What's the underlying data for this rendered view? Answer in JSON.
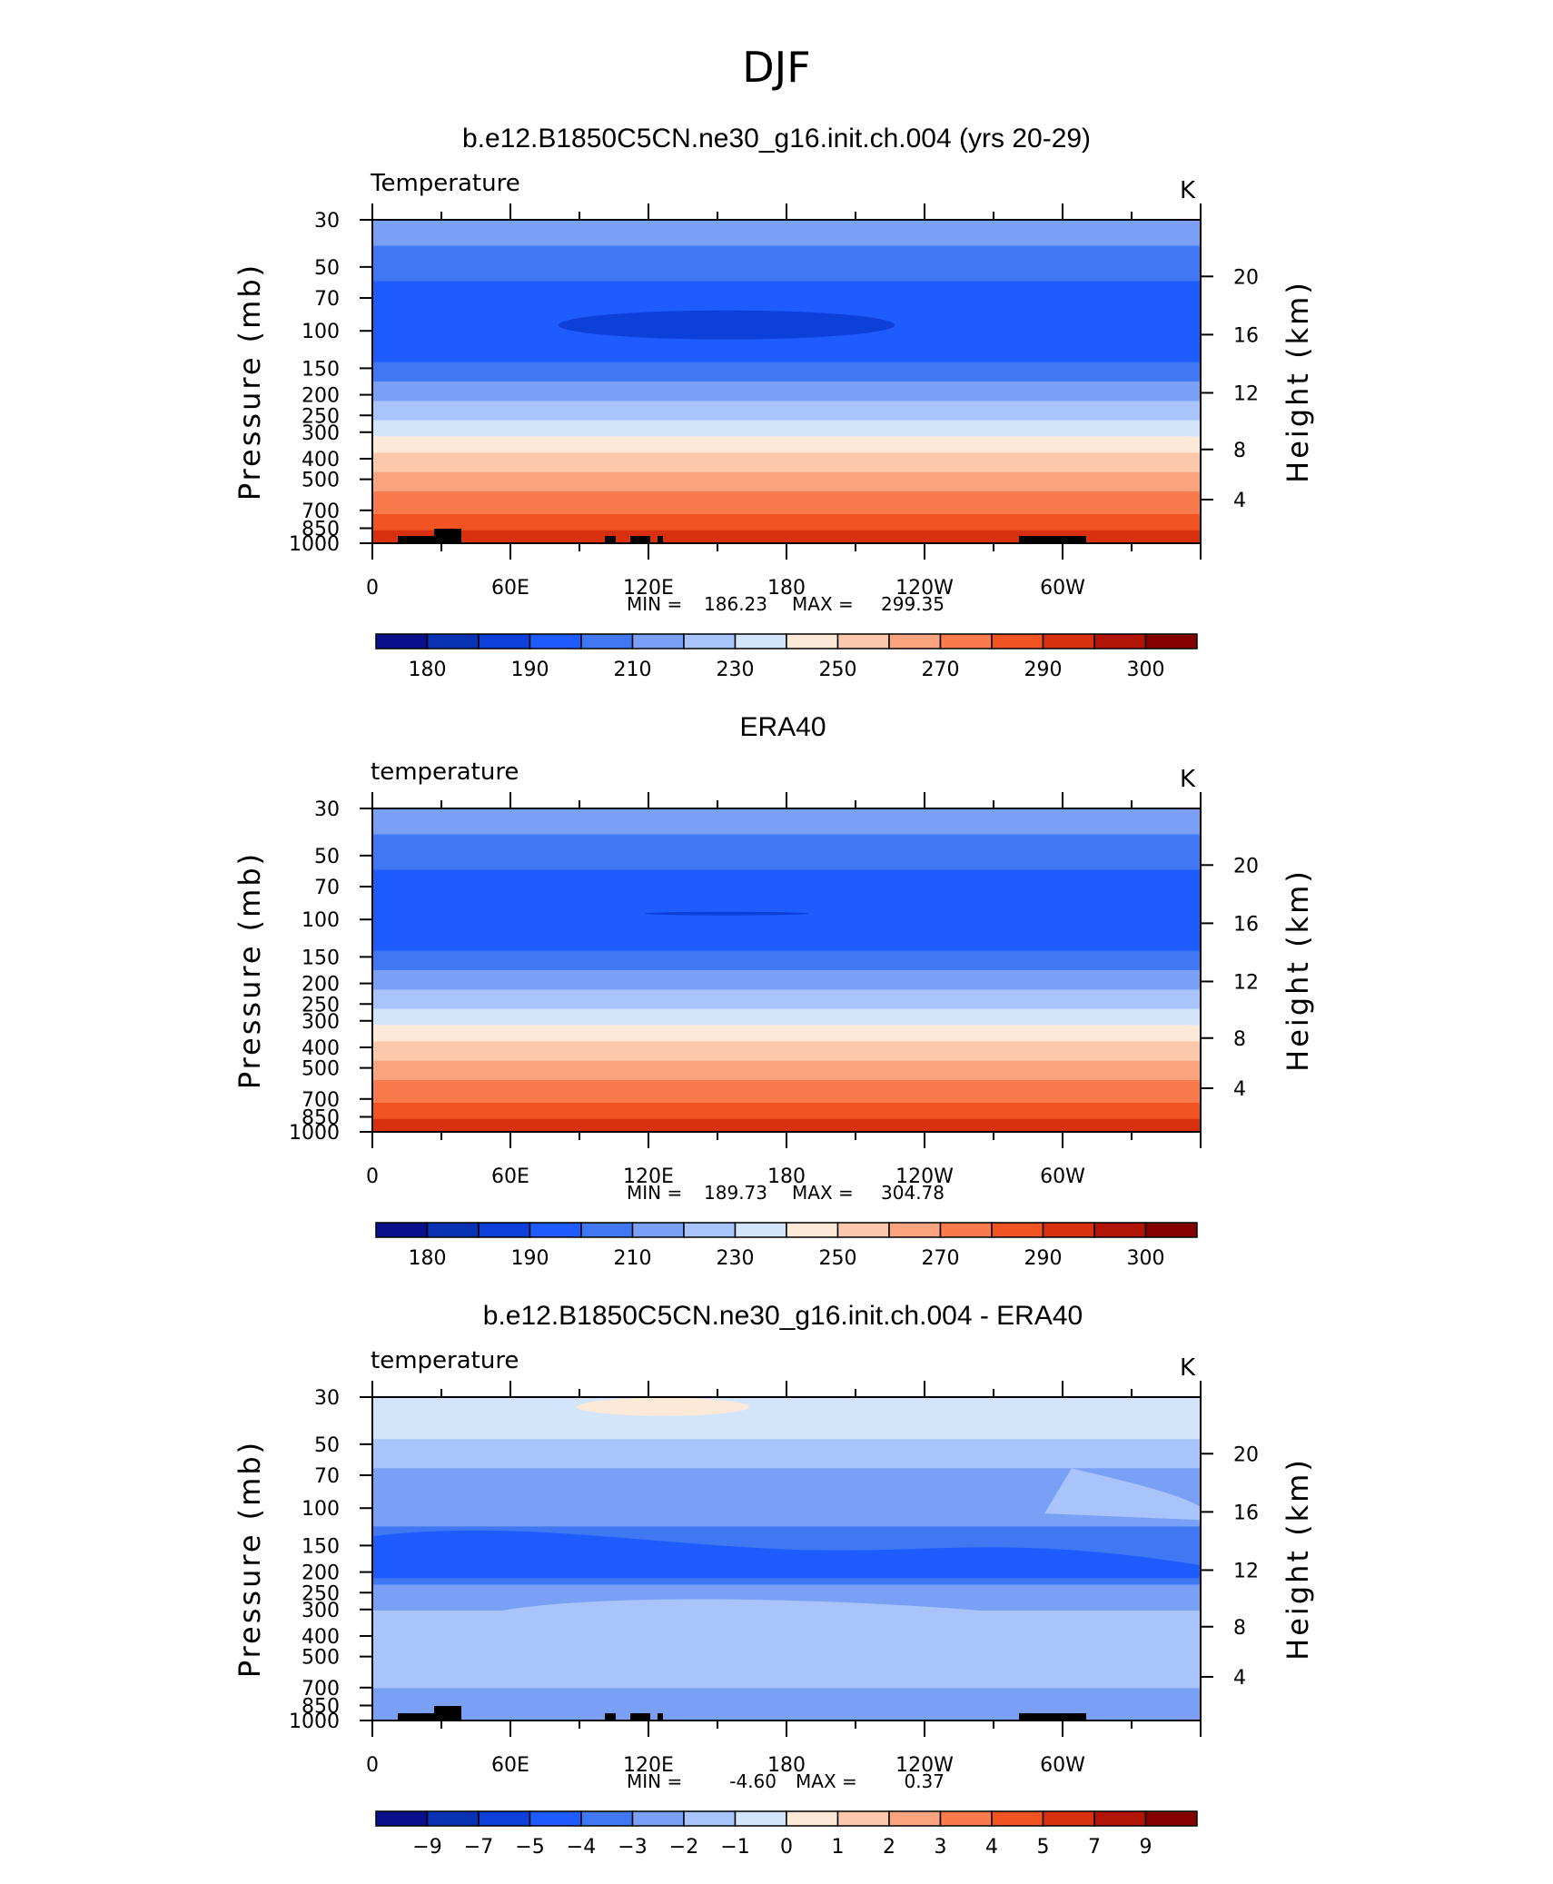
{
  "figure": {
    "title": "DJF"
  },
  "chart_data": [
    {
      "type": "heatmap",
      "title": "b.e12.B1850C5CN.ne30_g16.init.ch.004 (yrs 20-29)",
      "variable": "Temperature",
      "units": "K",
      "ylabel": "Pressure (mb)",
      "ylabel_right": "Height (km)",
      "x_ticks": [
        "0",
        "60E",
        "120E",
        "180",
        "120W",
        "60W"
      ],
      "y_ticks": [
        "30",
        "50",
        "70",
        "100",
        "150",
        "200",
        "250",
        "300",
        "400",
        "500",
        "700",
        "850",
        "1000"
      ],
      "y_ticks_right": [
        "20",
        "16",
        "12",
        "8",
        "4"
      ],
      "min_label": "MIN =",
      "min_value": "186.23",
      "max_label": "MAX =",
      "max_value": "299.35",
      "colorbar_labels": [
        "180",
        "190",
        "210",
        "230",
        "250",
        "270",
        "290",
        "300"
      ],
      "colorbar_colors": [
        "#0a0f8c",
        "#0a32b4",
        "#0d3fd9",
        "#1e5cff",
        "#3f78f2",
        "#7aa0f5",
        "#a9c4fa",
        "#d3e5fb",
        "#fde9d7",
        "#fcc8ac",
        "#fba37e",
        "#f97a4c",
        "#f25322",
        "#d9300f",
        "#b01508",
        "#850000"
      ]
    },
    {
      "type": "heatmap",
      "title": "ERA40",
      "variable": "temperature",
      "units": "K",
      "ylabel": "Pressure (mb)",
      "ylabel_right": "Height (km)",
      "x_ticks": [
        "0",
        "60E",
        "120E",
        "180",
        "120W",
        "60W"
      ],
      "y_ticks": [
        "30",
        "50",
        "70",
        "100",
        "150",
        "200",
        "250",
        "300",
        "400",
        "500",
        "700",
        "850",
        "1000"
      ],
      "y_ticks_right": [
        "20",
        "16",
        "12",
        "8",
        "4"
      ],
      "min_label": "MIN =",
      "min_value": "189.73",
      "max_label": "MAX =",
      "max_value": "304.78",
      "colorbar_labels": [
        "180",
        "190",
        "210",
        "230",
        "250",
        "270",
        "290",
        "300"
      ],
      "colorbar_colors": [
        "#0a0f8c",
        "#0a32b4",
        "#0d3fd9",
        "#1e5cff",
        "#3f78f2",
        "#7aa0f5",
        "#a9c4fa",
        "#d3e5fb",
        "#fde9d7",
        "#fcc8ac",
        "#fba37e",
        "#f97a4c",
        "#f25322",
        "#d9300f",
        "#b01508",
        "#850000"
      ]
    },
    {
      "type": "heatmap",
      "title": "b.e12.B1850C5CN.ne30_g16.init.ch.004 - ERA40",
      "variable": "temperature",
      "units": "K",
      "ylabel": "Pressure (mb)",
      "ylabel_right": "Height (km)",
      "x_ticks": [
        "0",
        "60E",
        "120E",
        "180",
        "120W",
        "60W"
      ],
      "y_ticks": [
        "30",
        "50",
        "70",
        "100",
        "150",
        "200",
        "250",
        "300",
        "400",
        "500",
        "700",
        "850",
        "1000"
      ],
      "y_ticks_right": [
        "20",
        "16",
        "12",
        "8",
        "4"
      ],
      "min_label": "MIN =",
      "min_value": "-4.60",
      "max_label": "MAX =",
      "max_value": "0.37",
      "colorbar_labels": [
        "−9",
        "−7",
        "−5",
        "−4",
        "−3",
        "−2",
        "−1",
        "0",
        "1",
        "2",
        "3",
        "4",
        "5",
        "7",
        "9"
      ],
      "colorbar_colors": [
        "#0a0f8c",
        "#0a32b4",
        "#0d3fd9",
        "#1e5cff",
        "#3f78f2",
        "#7aa0f5",
        "#a9c4fa",
        "#d3e5fb",
        "#fde9d7",
        "#fcc8ac",
        "#fba37e",
        "#f97a4c",
        "#f25322",
        "#d9300f",
        "#b01508",
        "#850000"
      ]
    }
  ]
}
